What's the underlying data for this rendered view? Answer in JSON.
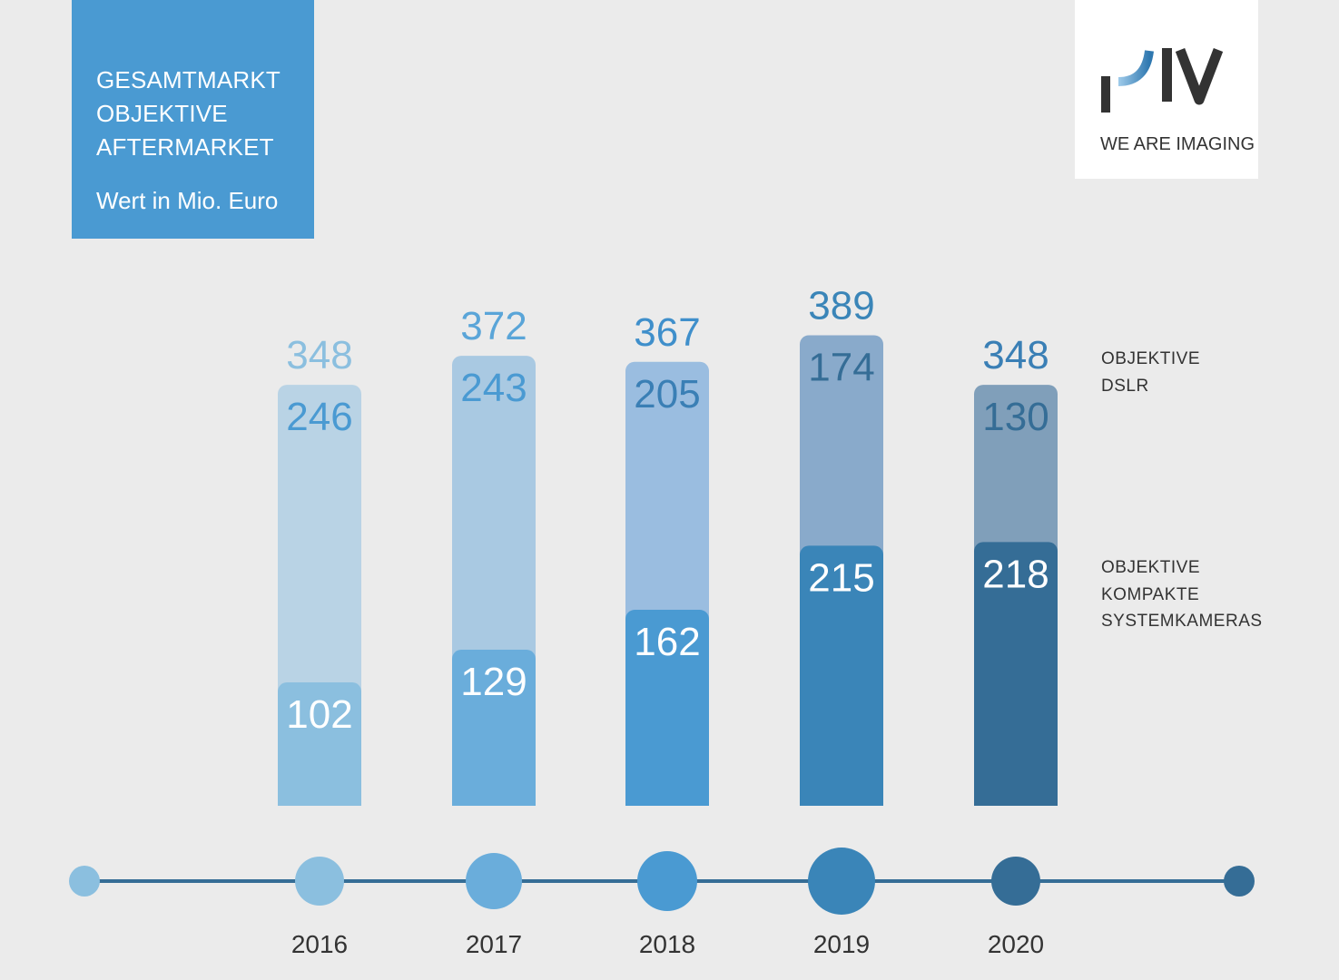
{
  "header": {
    "title_lines": [
      "GESAMTMARKT",
      "OBJEKTIVE",
      "AFTERMARKET"
    ],
    "unit": "Wert in Mio. Euro"
  },
  "logo": {
    "text": "PIV",
    "tagline": "WE ARE IMAGING"
  },
  "legend": {
    "top_lines": [
      "OBJEKTIVE",
      "DSLR"
    ],
    "bottom_lines": [
      "OBJEKTIVE",
      "KOMPAKTE",
      "SYSTEMKAMERAS"
    ]
  },
  "chart_data": {
    "type": "bar",
    "stacked": true,
    "title": "Gesamtmarkt Objektive Aftermarket",
    "ylabel": "Wert in Mio. Euro",
    "categories": [
      "2016",
      "2017",
      "2018",
      "2019",
      "2020"
    ],
    "series": [
      {
        "name": "Objektive Kompakte Systemkameras",
        "values": [
          102,
          129,
          162,
          215,
          218
        ]
      },
      {
        "name": "Objektive DSLR",
        "values": [
          246,
          243,
          205,
          174,
          130
        ]
      }
    ],
    "totals": [
      348,
      372,
      367,
      389,
      348
    ],
    "colors": {
      "bottom": [
        "#8bbfdf",
        "#6aaddb",
        "#4a9ad2",
        "#3a85b8",
        "#356d96"
      ],
      "top": [
        "#b9d3e5",
        "#a9c9e2",
        "#9abde0",
        "#89aacb",
        "#809fba"
      ],
      "top_text": [
        "#4a9ad2",
        "#4a9ad2",
        "#3a7fb5",
        "#356d96",
        "#356d96"
      ],
      "total_text": [
        "#8bbfdf",
        "#5aa5d8",
        "#3f8fcb",
        "#3a85b8",
        "#3a7fb5"
      ],
      "timeline": "#356d96"
    },
    "legend_position": "right"
  }
}
